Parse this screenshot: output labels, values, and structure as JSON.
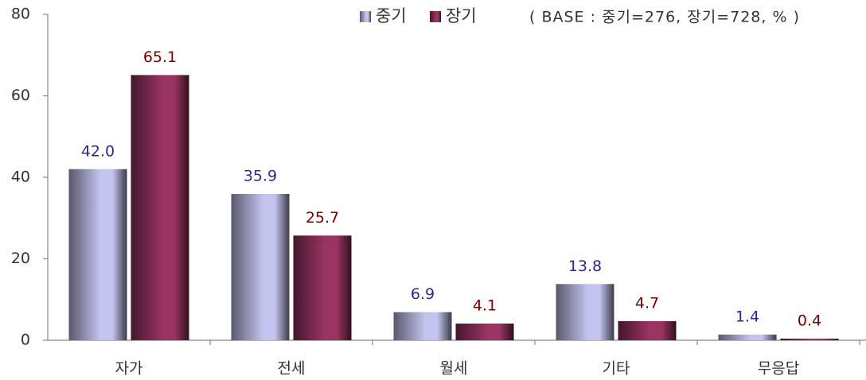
{
  "chart_data": {
    "type": "bar",
    "annotation": "( BASE : 중기=276, 장기=728, % )",
    "categories": [
      "자가",
      "전세",
      "월세",
      "기타",
      "무응답"
    ],
    "series": [
      {
        "name": "중기",
        "color": "#c4c4f0",
        "label_color": "#2b2b8a",
        "values": [
          42.0,
          35.9,
          6.9,
          13.8,
          1.4
        ],
        "value_labels": [
          "42.0",
          "35.9",
          "6.9",
          "13.8",
          "1.4"
        ]
      },
      {
        "name": "장기",
        "color": "#9a3462",
        "label_color": "#7a0000",
        "values": [
          65.1,
          25.7,
          4.1,
          4.7,
          0.4
        ],
        "value_labels": [
          "65.1",
          "25.7",
          "4.1",
          "4.7",
          "0.4"
        ]
      }
    ],
    "ylim": [
      0,
      80
    ],
    "yticks": [
      0,
      20,
      40,
      60,
      80
    ],
    "grid": false,
    "legend": "top"
  }
}
